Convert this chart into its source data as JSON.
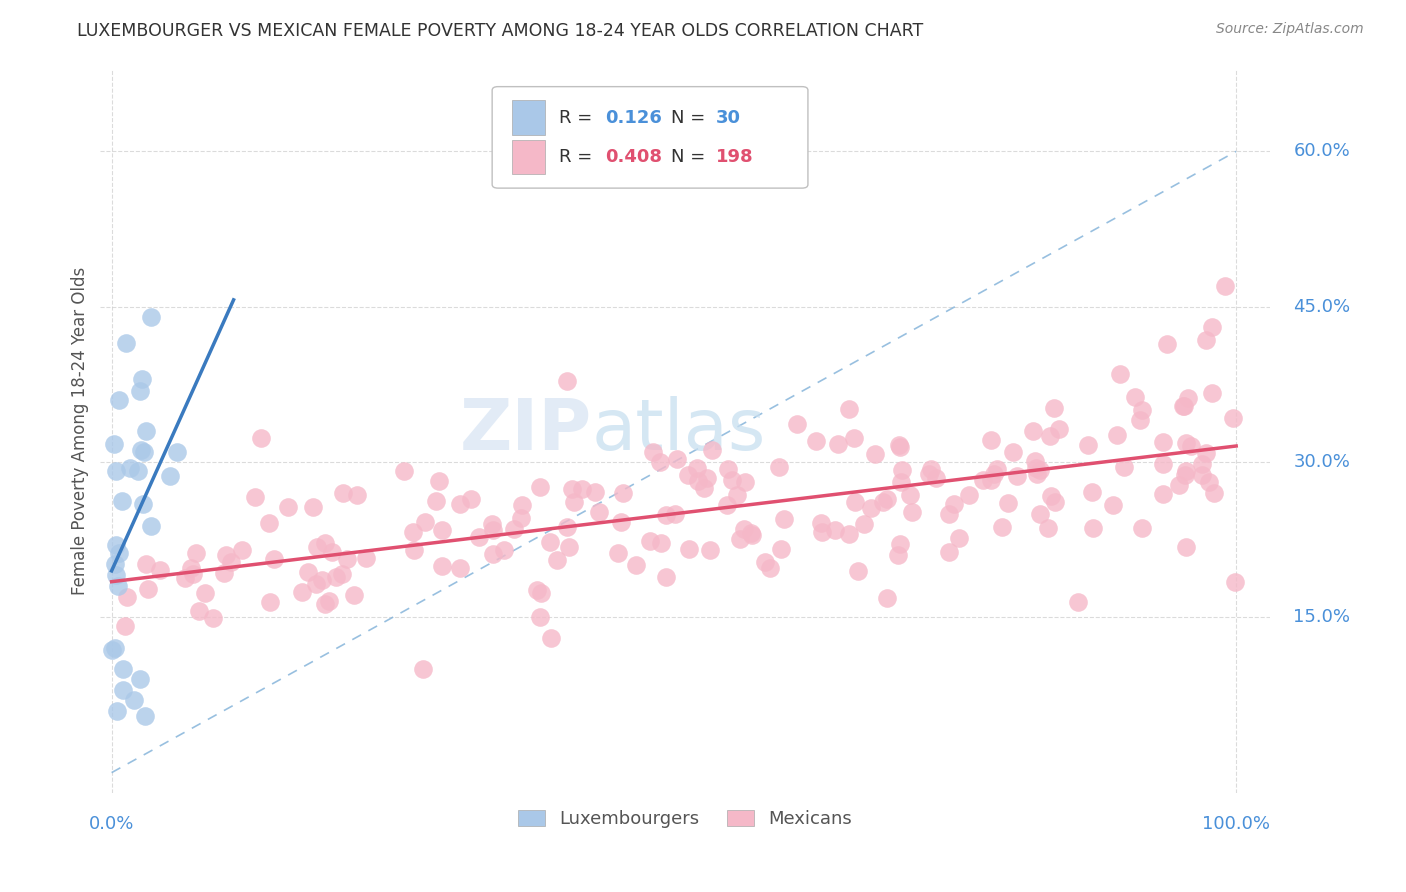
{
  "title": "LUXEMBOURGER VS MEXICAN FEMALE POVERTY AMONG 18-24 YEAR OLDS CORRELATION CHART",
  "source": "Source: ZipAtlas.com",
  "ylabel": "Female Poverty Among 18-24 Year Olds",
  "lux_R": 0.126,
  "lux_N": 30,
  "mex_R": 0.408,
  "mex_N": 198,
  "xlim": [
    -0.01,
    1.03
  ],
  "ylim": [
    -0.02,
    0.68
  ],
  "ytick_vals": [
    0.15,
    0.3,
    0.45,
    0.6
  ],
  "ytick_labels": [
    "15.0%",
    "30.0%",
    "45.0%",
    "60.0%"
  ],
  "xtick_left_val": 0.0,
  "xtick_left_label": "0.0%",
  "xtick_right_val": 1.0,
  "xtick_right_label": "100.0%",
  "lux_color": "#aac8e8",
  "mex_color": "#f5b8c8",
  "lux_line_color": "#3a7abf",
  "mex_line_color": "#e05070",
  "tick_label_color": "#4a90d9",
  "bg_color": "#ffffff",
  "watermark_zip": "ZIP",
  "watermark_atlas": "atlas",
  "grid_color": "#cccccc",
  "legend_lux_color": "#aac8e8",
  "legend_mex_color": "#f5b8c8"
}
